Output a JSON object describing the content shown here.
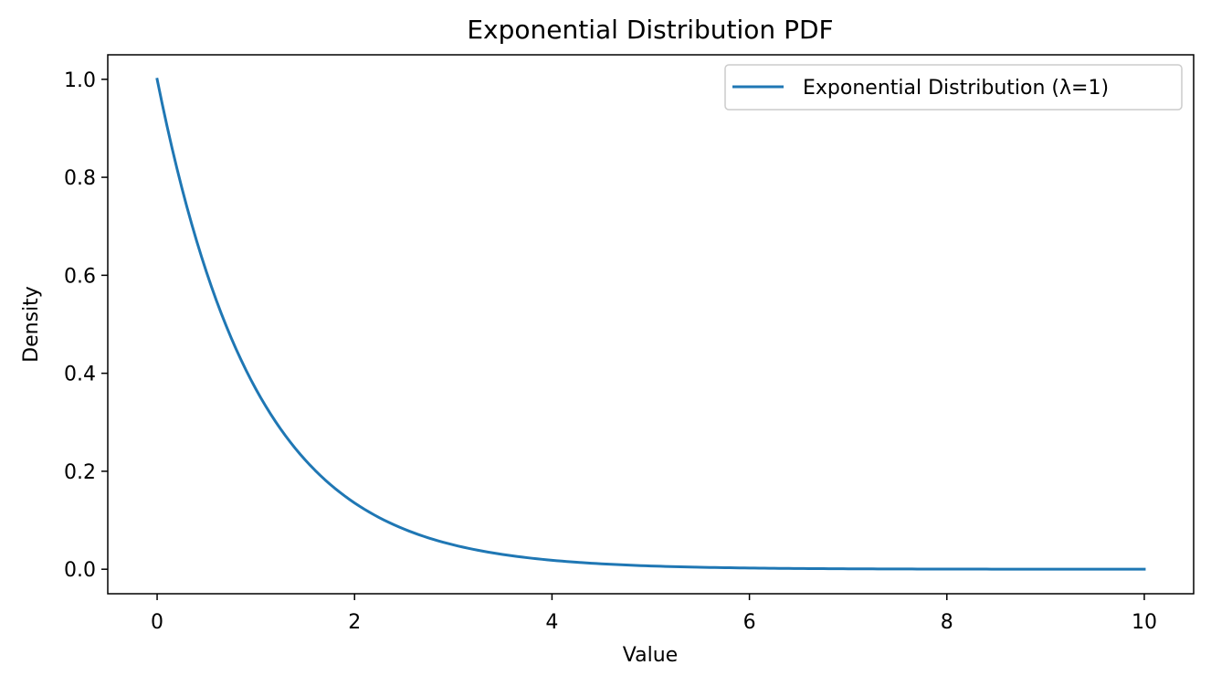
{
  "chart_data": {
    "type": "line",
    "title": "Exponential Distribution PDF",
    "xlabel": "Value",
    "ylabel": "Density",
    "xlim": [
      -0.5,
      10.5
    ],
    "ylim": [
      -0.05,
      1.05
    ],
    "xticks": [
      0,
      2,
      4,
      6,
      8,
      10
    ],
    "xtick_labels": [
      "0",
      "2",
      "4",
      "6",
      "8",
      "10"
    ],
    "yticks": [
      0.0,
      0.2,
      0.4,
      0.6,
      0.8,
      1.0
    ],
    "ytick_labels": [
      "0.0",
      "0.2",
      "0.4",
      "0.6",
      "0.8",
      "1.0"
    ],
    "grid": false,
    "legend_position": "top-right",
    "series": [
      {
        "name": "Exponential Distribution (λ=1)",
        "color": "#1f77b4",
        "x": [
          0,
          0.25,
          0.5,
          0.75,
          1,
          1.25,
          1.5,
          1.75,
          2,
          2.5,
          3,
          3.5,
          4,
          4.5,
          5,
          5.5,
          6,
          6.5,
          7,
          7.5,
          8,
          8.5,
          9,
          9.5,
          10
        ],
        "y": [
          1.0,
          0.779,
          0.607,
          0.472,
          0.368,
          0.287,
          0.223,
          0.174,
          0.135,
          0.082,
          0.05,
          0.03,
          0.018,
          0.011,
          0.007,
          0.004,
          0.002,
          0.002,
          0.001,
          0.001,
          0.0,
          0.0,
          0.0,
          0.0,
          0.0
        ]
      }
    ]
  }
}
